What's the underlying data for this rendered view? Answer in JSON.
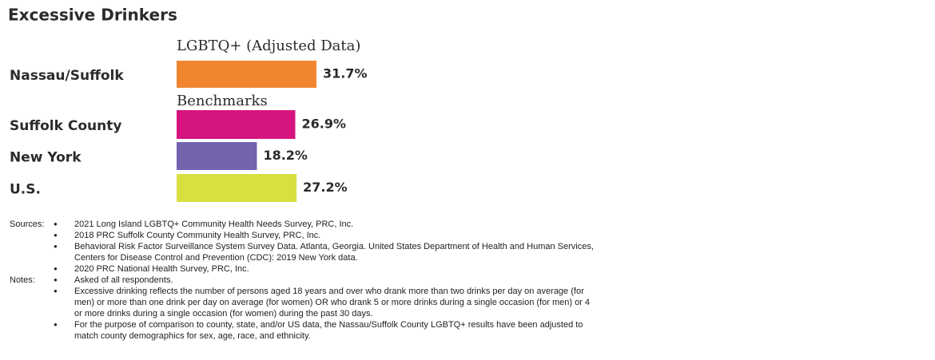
{
  "chart_data": {
    "type": "bar",
    "orientation": "horizontal",
    "title": "Excessive Drinkers",
    "categories": [
      "Nassau/Suffolk",
      "Suffolk County",
      "New York",
      "U.S."
    ],
    "values": [
      31.7,
      26.9,
      18.2,
      27.2
    ],
    "value_labels": [
      "31.7%",
      "26.9%",
      "18.2%",
      "27.2%"
    ],
    "colors": [
      "#f0862f",
      "#d6147f",
      "#7563ae",
      "#d8e040"
    ],
    "group_labels": [
      "LGBTQ+ (Adjusted Data)",
      "Benchmarks"
    ]
  },
  "footnotes": {
    "sources_label": "Sources:",
    "sources": [
      "2021 Long Island LGBTQ+ Community Health Needs Survey, PRC, Inc.",
      "2018 PRC Suffolk County Community Health Survey, PRC, Inc.",
      "Behavioral Risk Factor Surveillance System Survey Data. Atlanta, Georgia. United States Department of Health and Human Services, Centers for Disease Control and Prevention (CDC): 2019 New York data.",
      "2020 PRC National Health Survey, PRC, Inc."
    ],
    "notes_label": "Notes:",
    "notes": [
      "Asked of all respondents.",
      "Excessive drinking reflects the number of persons aged 18 years and over who drank more than two drinks per day on average (for men) or more than one drink per day on average (for women) OR who drank 5 or more drinks during a single occasion (for men) or 4 or more drinks during a single occasion (for women) during the past 30 days.",
      "For the purpose of comparison to county, state, and/or US data, the Nassau/Suffolk County LGBTQ+ results have been adjusted to match county demographics for sex, age, race, and ethnicity."
    ]
  }
}
